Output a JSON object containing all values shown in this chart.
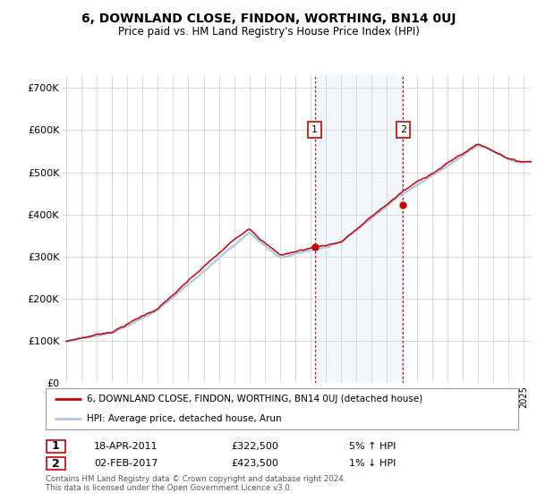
{
  "title": "6, DOWNLAND CLOSE, FINDON, WORTHING, BN14 0UJ",
  "subtitle": "Price paid vs. HM Land Registry's House Price Index (HPI)",
  "ylabel_ticks": [
    "£0",
    "£100K",
    "£200K",
    "£300K",
    "£400K",
    "£500K",
    "£600K",
    "£700K"
  ],
  "ytick_values": [
    0,
    100000,
    200000,
    300000,
    400000,
    500000,
    600000,
    700000
  ],
  "ylim": [
    0,
    730000
  ],
  "xlim_start": 1994.7,
  "xlim_end": 2025.5,
  "hpi_color": "#a8c8e8",
  "price_color": "#cc0000",
  "shaded_region_color": "#daeaf7",
  "ann1_x": 2011.28,
  "ann1_y": 322500,
  "ann2_x": 2017.08,
  "ann2_y": 423500,
  "legend_line1": "6, DOWNLAND CLOSE, FINDON, WORTHING, BN14 0UJ (detached house)",
  "legend_line2": "HPI: Average price, detached house, Arun",
  "footer": "Contains HM Land Registry data © Crown copyright and database right 2024.\nThis data is licensed under the Open Government Licence v3.0.",
  "table_row1": [
    "1",
    "18-APR-2011",
    "£322,500",
    "5% ↑ HPI"
  ],
  "table_row2": [
    "2",
    "02-FEB-2017",
    "£423,500",
    "1% ↓ HPI"
  ]
}
